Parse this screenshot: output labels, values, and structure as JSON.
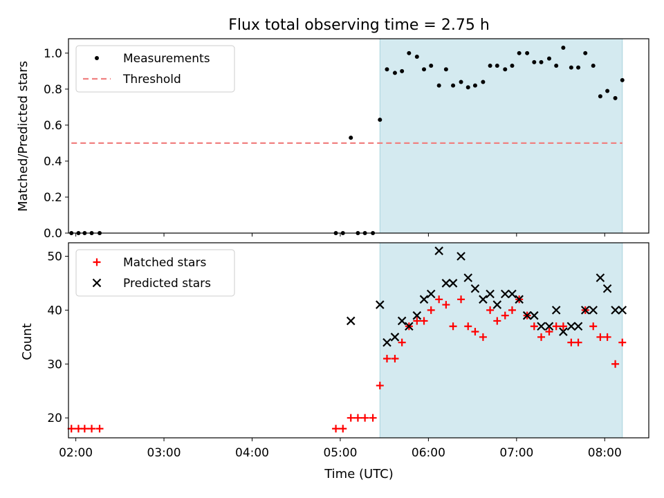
{
  "title": "Flux total observing time = 2.75 h",
  "chart_data": [
    {
      "type": "scatter",
      "panel": "top",
      "ylabel": "Matched/Predicted stars",
      "xlabel": "",
      "xlim": [
        1.9167,
        8.5
      ],
      "ylim": [
        0,
        1.08
      ],
      "yticks": [
        0.0,
        0.2,
        0.4,
        0.6,
        0.8,
        1.0
      ],
      "ytick_labels": [
        "0.0",
        "0.2",
        "0.4",
        "0.6",
        "0.8",
        "1.0"
      ],
      "shaded_region": [
        5.45,
        8.2
      ],
      "shaded_color": "#d4eaf0",
      "legend_position": "top-left",
      "series": [
        {
          "name": "Measurements",
          "marker": "dot",
          "color": "#000000",
          "x": [
            1.95,
            2.03,
            2.1,
            2.18,
            2.27,
            4.95,
            5.03,
            5.12,
            5.2,
            5.28,
            5.37,
            5.45,
            5.53,
            5.62,
            5.7,
            5.78,
            5.87,
            5.95,
            6.03,
            6.12,
            6.2,
            6.28,
            6.37,
            6.45,
            6.53,
            6.62,
            6.7,
            6.78,
            6.87,
            6.95,
            7.03,
            7.12,
            7.2,
            7.28,
            7.37,
            7.45,
            7.53,
            7.62,
            7.7,
            7.78,
            7.87,
            7.95,
            8.03,
            8.12,
            8.2
          ],
          "y": [
            0,
            0,
            0,
            0,
            0,
            0,
            0,
            0.53,
            0,
            0,
            0,
            0.63,
            0.91,
            0.89,
            0.9,
            1.0,
            0.98,
            0.91,
            0.93,
            0.82,
            0.91,
            0.82,
            0.84,
            0.81,
            0.82,
            0.84,
            0.93,
            0.93,
            0.91,
            0.93,
            1.0,
            1.0,
            0.95,
            0.95,
            0.97,
            0.93,
            1.03,
            0.92,
            0.92,
            1.0,
            0.93,
            0.76,
            0.79,
            0.75,
            0.85
          ]
        },
        {
          "name": "Threshold",
          "marker": "dashed-line",
          "color": "#f08080",
          "x": [
            1.95,
            8.2
          ],
          "y": [
            0.5,
            0.5
          ]
        }
      ]
    },
    {
      "type": "scatter",
      "panel": "bottom",
      "ylabel": "Count",
      "xlabel": "Time (UTC)",
      "xlim": [
        1.9167,
        8.5
      ],
      "ylim": [
        16.3,
        52.5
      ],
      "yticks": [
        20,
        30,
        40,
        50
      ],
      "ytick_labels": [
        "20",
        "30",
        "40",
        "50"
      ],
      "xticks": [
        2,
        3,
        4,
        5,
        6,
        7,
        8
      ],
      "xtick_labels": [
        "02:00",
        "03:00",
        "04:00",
        "05:00",
        "06:00",
        "07:00",
        "08:00"
      ],
      "shaded_region": [
        5.45,
        8.2
      ],
      "shaded_color": "#d4eaf0",
      "legend_position": "top-left",
      "series": [
        {
          "name": "Matched stars",
          "marker": "plus",
          "color": "#ff0000",
          "x": [
            1.95,
            2.03,
            2.1,
            2.18,
            2.27,
            4.95,
            5.03,
            5.12,
            5.2,
            5.28,
            5.37,
            5.45,
            5.53,
            5.62,
            5.7,
            5.78,
            5.87,
            5.95,
            6.03,
            6.12,
            6.2,
            6.28,
            6.37,
            6.45,
            6.53,
            6.62,
            6.7,
            6.78,
            6.87,
            6.95,
            7.03,
            7.12,
            7.2,
            7.28,
            7.37,
            7.45,
            7.53,
            7.62,
            7.7,
            7.78,
            7.87,
            7.95,
            8.03,
            8.12,
            8.2
          ],
          "y": [
            18,
            18,
            18,
            18,
            18,
            18,
            18,
            20,
            20,
            20,
            20,
            26,
            31,
            31,
            34,
            37,
            38,
            38,
            40,
            42,
            41,
            37,
            42,
            37,
            36,
            35,
            40,
            38,
            39,
            40,
            42,
            39,
            37,
            35,
            36,
            37,
            37,
            34,
            34,
            40,
            37,
            35,
            35,
            30,
            34
          ]
        },
        {
          "name": "Predicted stars",
          "marker": "x",
          "color": "#000000",
          "x": [
            5.12,
            5.45,
            5.53,
            5.62,
            5.7,
            5.78,
            5.87,
            5.95,
            6.03,
            6.12,
            6.2,
            6.28,
            6.37,
            6.45,
            6.53,
            6.62,
            6.7,
            6.78,
            6.87,
            6.95,
            7.03,
            7.12,
            7.2,
            7.28,
            7.37,
            7.45,
            7.53,
            7.62,
            7.7,
            7.78,
            7.87,
            7.95,
            8.03,
            8.12,
            8.2
          ],
          "y": [
            38,
            41,
            34,
            35,
            38,
            37,
            39,
            42,
            43,
            51,
            45,
            45,
            50,
            46,
            44,
            42,
            43,
            41,
            43,
            43,
            42,
            39,
            39,
            37,
            37,
            40,
            36,
            37,
            37,
            40,
            40,
            46,
            44,
            40,
            40
          ]
        }
      ]
    }
  ]
}
